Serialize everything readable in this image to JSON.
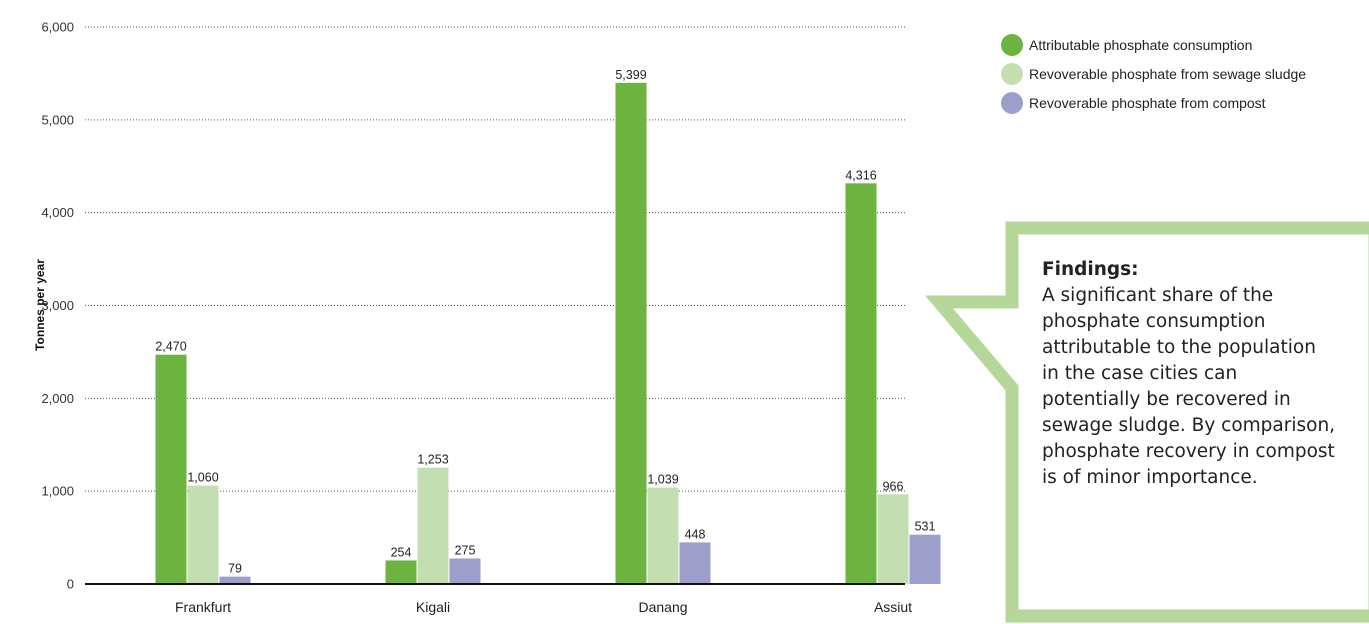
{
  "chart_data": {
    "type": "bar",
    "categories": [
      "Frankfurt",
      "Kigali",
      "Danang",
      "Assiut"
    ],
    "series": [
      {
        "name": "Attributable phosphate consumption",
        "color": "#6db33f",
        "values": [
          2470,
          254,
          5399,
          4316
        ],
        "labels": [
          "2,470",
          "254",
          "5,399",
          "4,316"
        ]
      },
      {
        "name": "Revoverable phosphate from sewage sludge",
        "color": "#c3deb0",
        "values": [
          1060,
          1253,
          1039,
          966
        ],
        "labels": [
          "1,060",
          "1,253",
          "1,039",
          "966"
        ]
      },
      {
        "name": "Revoverable phosphate from compost",
        "color": "#9e9ecb",
        "values": [
          79,
          275,
          448,
          531
        ],
        "labels": [
          "79",
          "275",
          "448",
          "531"
        ]
      }
    ],
    "ylabel": "Tonnes per year",
    "ylim": [
      0,
      6000
    ],
    "yticks": [
      0,
      1000,
      2000,
      3000,
      4000,
      5000,
      6000
    ],
    "ytick_labels": [
      "0",
      "1,000",
      "2,000",
      "3,000",
      "4,000",
      "5,000",
      "6,000"
    ],
    "grid": true,
    "legend_position": "top-right"
  },
  "findings": {
    "title": "Findings:",
    "lines": [
      "A significant share of the",
      "phosphate consumption",
      "attributable to the population",
      "in the case cities can",
      "potentially be recovered in",
      "sewage sludge. By comparison,",
      "phosphate recovery in compost",
      "is of minor importance."
    ],
    "border_color": "#b5d89a"
  }
}
